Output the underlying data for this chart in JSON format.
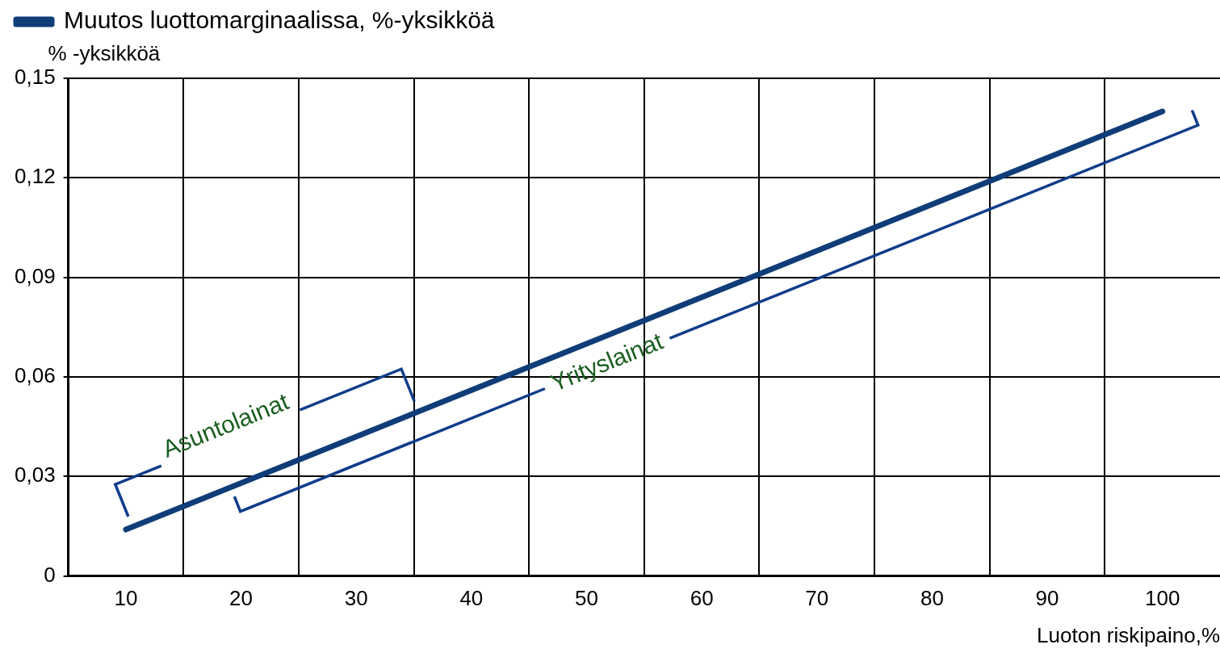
{
  "chart_data": {
    "type": "line",
    "xlabel": "Luoton riskipaino,%",
    "ylabel": "% -yksikköä",
    "x": [
      10,
      100
    ],
    "series": [
      {
        "name": "Muutos luottomarginaalissa, %-yksikköä",
        "color": "#0f3d78",
        "values": [
          0.014,
          0.14
        ]
      }
    ],
    "xlim": [
      5,
      105
    ],
    "xticks": [
      {
        "value": 10,
        "label": "10"
      },
      {
        "value": 15,
        "label": null
      },
      {
        "value": 20,
        "label": "20"
      },
      {
        "value": 25,
        "label": null
      },
      {
        "value": 30,
        "label": "30"
      },
      {
        "value": 35,
        "label": null
      },
      {
        "value": 40,
        "label": "40"
      },
      {
        "value": 45,
        "label": null
      },
      {
        "value": 50,
        "label": "50"
      },
      {
        "value": 55,
        "label": null
      },
      {
        "value": 60,
        "label": "60"
      },
      {
        "value": 65,
        "label": null
      },
      {
        "value": 70,
        "label": "70"
      },
      {
        "value": 75,
        "label": null
      },
      {
        "value": 80,
        "label": "80"
      },
      {
        "value": 85,
        "label": null
      },
      {
        "value": 90,
        "label": "90"
      },
      {
        "value": 95,
        "label": null
      },
      {
        "value": 100,
        "label": "100"
      }
    ],
    "ylim": [
      0,
      0.15
    ],
    "yticks": [
      {
        "value": 0,
        "label": "0"
      },
      {
        "value": 0.03,
        "label": "0,03"
      },
      {
        "value": 0.06,
        "label": "0,06"
      },
      {
        "value": 0.09,
        "label": "0,09"
      },
      {
        "value": 0.12,
        "label": "0,12"
      },
      {
        "value": 0.15,
        "label": "0,15"
      }
    ],
    "annotations": [
      "Asuntolainat",
      "Yrityslainat"
    ],
    "grid": true,
    "legend": "top left",
    "marker": "none",
    "line_style": "solid"
  }
}
